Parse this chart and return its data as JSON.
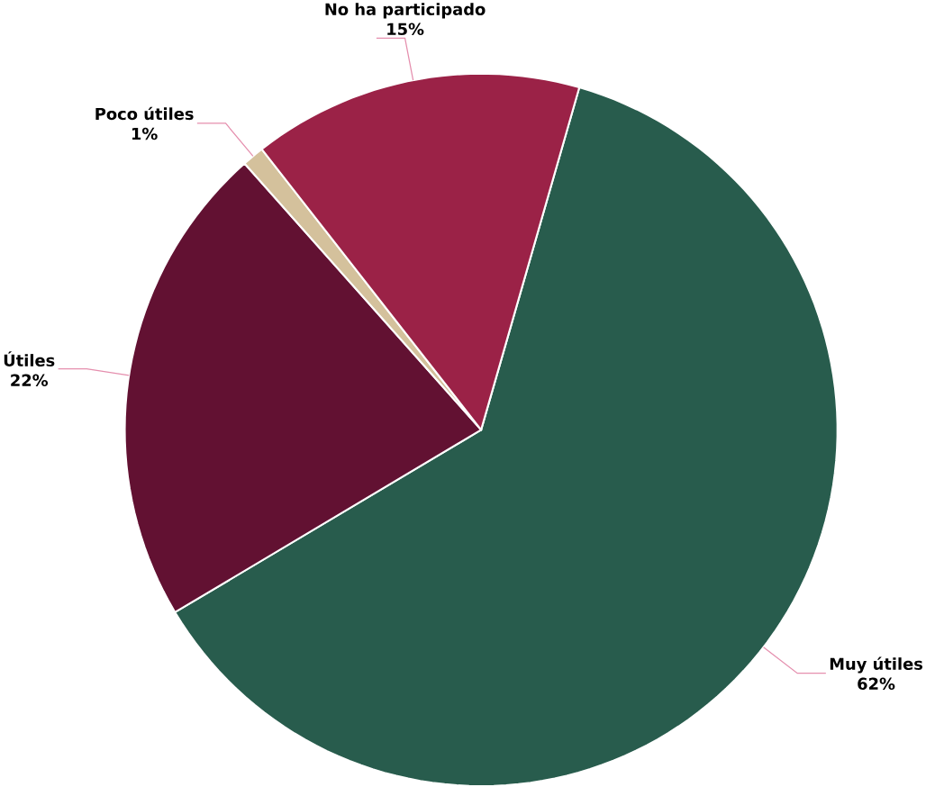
{
  "chart_data": {
    "type": "pie",
    "categories": [
      "Muy útiles",
      "Útiles",
      "Poco útiles",
      "No ha participado"
    ],
    "values": [
      62,
      22,
      1,
      15
    ],
    "value_labels": [
      "62%",
      "22%",
      "1%",
      "15%"
    ],
    "colors": [
      "#285c4d",
      "#621132",
      "#d4c19c",
      "#9b2247"
    ]
  }
}
